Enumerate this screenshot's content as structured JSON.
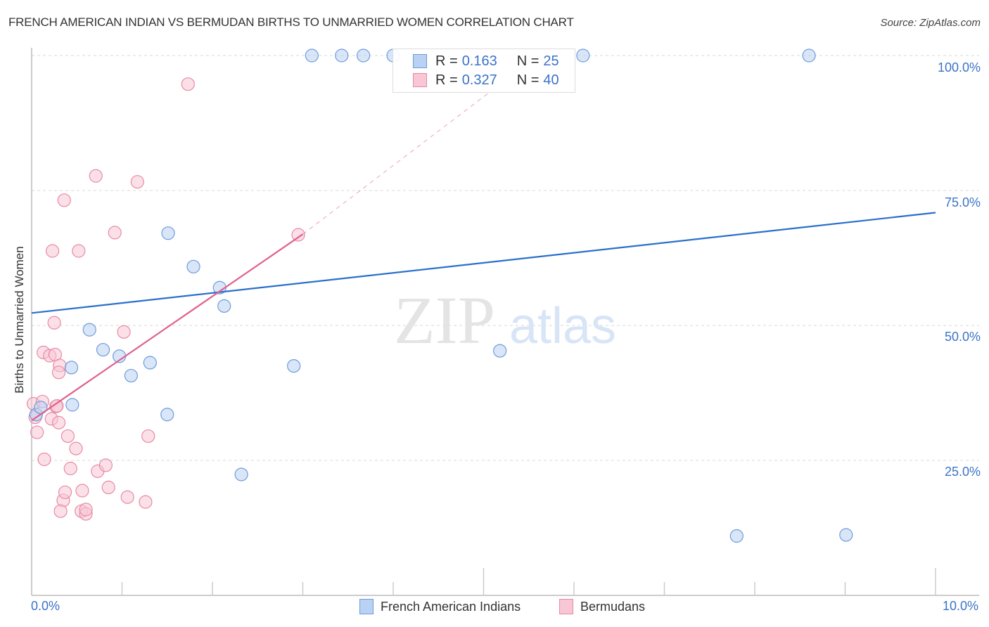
{
  "header": {
    "title": "FRENCH AMERICAN INDIAN VS BERMUDAN BIRTHS TO UNMARRIED WOMEN CORRELATION CHART",
    "source": "Source: ZipAtlas.com"
  },
  "watermark": {
    "zip": "ZIP",
    "atlas": "atlas"
  },
  "axes": {
    "y_label": "Births to Unmarried Women",
    "y_ticks": [
      "100.0%",
      "75.0%",
      "50.0%",
      "25.0%"
    ],
    "x_ticks": [
      "0.0%",
      "10.0%"
    ]
  },
  "legend": {
    "series": [
      {
        "name": "French American Indians",
        "r_label": "R =",
        "r_value": "0.163",
        "n_label": "N =",
        "n_value": "25"
      },
      {
        "name": "Bermudans",
        "r_label": "R =",
        "r_value": "0.327",
        "n_label": "N =",
        "n_value": "40"
      }
    ]
  },
  "colors": {
    "blue_fill": "#b9d1f3",
    "blue_stroke": "#6f9bdc",
    "blue_line": "#2a6fcc",
    "pink_fill": "#f8c6d5",
    "pink_stroke": "#e88aa6",
    "pink_line": "#e06090",
    "tick_text": "#3b73c8"
  },
  "chart_data": {
    "type": "scatter",
    "title": "FRENCH AMERICAN INDIAN VS BERMUDAN BIRTHS TO UNMARRIED WOMEN CORRELATION CHART",
    "xlabel": "",
    "ylabel": "Births to Unmarried Women",
    "xlim": [
      0,
      10
    ],
    "ylim": [
      0,
      100
    ],
    "x_ticks": [
      "0.0%",
      "10.0%"
    ],
    "y_ticks": [
      "25.0%",
      "50.0%",
      "75.0%",
      "100.0%"
    ],
    "grid": "horizontal dashed",
    "legend_position": "top-center (stats) and bottom-center (series)",
    "series": [
      {
        "name": "French American Indians",
        "R": 0.163,
        "N": 25,
        "points": [
          [
            0.05,
            33.5
          ],
          [
            0.1,
            34.8
          ],
          [
            0.45,
            35.3
          ],
          [
            0.44,
            42.2
          ],
          [
            0.64,
            49.2
          ],
          [
            0.79,
            45.5
          ],
          [
            0.97,
            44.3
          ],
          [
            1.1,
            40.7
          ],
          [
            1.31,
            43.1
          ],
          [
            1.5,
            33.5
          ],
          [
            1.51,
            67.1
          ],
          [
            1.79,
            60.9
          ],
          [
            2.08,
            57.0
          ],
          [
            2.13,
            53.6
          ],
          [
            2.32,
            22.4
          ],
          [
            2.9,
            42.5
          ],
          [
            3.1,
            100.0
          ],
          [
            3.43,
            100.0
          ],
          [
            3.67,
            100.0
          ],
          [
            4.0,
            100.0
          ],
          [
            5.18,
            45.3
          ],
          [
            6.1,
            100.0
          ],
          [
            7.8,
            11.0
          ],
          [
            8.6,
            100.0
          ],
          [
            9.01,
            11.2
          ]
        ],
        "trend": {
          "x": [
            0,
            10
          ],
          "y": [
            52.3,
            70.9
          ]
        }
      },
      {
        "name": "Bermudans",
        "R": 0.327,
        "N": 40,
        "points": [
          [
            0.02,
            35.5
          ],
          [
            0.04,
            33.0
          ],
          [
            0.06,
            30.2
          ],
          [
            0.12,
            35.9
          ],
          [
            0.14,
            25.2
          ],
          [
            0.22,
            32.7
          ],
          [
            0.23,
            63.8
          ],
          [
            0.25,
            50.5
          ],
          [
            0.13,
            45.0
          ],
          [
            0.2,
            44.4
          ],
          [
            0.26,
            44.6
          ],
          [
            0.27,
            35.0
          ],
          [
            0.28,
            35.1
          ],
          [
            0.31,
            42.6
          ],
          [
            0.3,
            41.3
          ],
          [
            0.3,
            32.0
          ],
          [
            0.36,
            73.2
          ],
          [
            0.35,
            17.6
          ],
          [
            0.37,
            19.1
          ],
          [
            0.4,
            29.5
          ],
          [
            0.43,
            23.5
          ],
          [
            0.49,
            27.2
          ],
          [
            0.52,
            63.8
          ],
          [
            0.55,
            15.6
          ],
          [
            0.56,
            19.4
          ],
          [
            0.6,
            15.1
          ],
          [
            0.71,
            77.7
          ],
          [
            0.73,
            23.0
          ],
          [
            0.82,
            24.1
          ],
          [
            0.85,
            20.0
          ],
          [
            0.92,
            67.2
          ],
          [
            1.02,
            48.8
          ],
          [
            1.06,
            18.2
          ],
          [
            1.17,
            76.6
          ],
          [
            1.26,
            17.3
          ],
          [
            1.29,
            29.5
          ],
          [
            1.73,
            94.7
          ],
          [
            0.32,
            15.6
          ],
          [
            0.6,
            15.9
          ],
          [
            2.95,
            66.8
          ]
        ],
        "trend": {
          "x": [
            0,
            3.0
          ],
          "y": [
            32.4,
            66.9
          ],
          "dashed_extension": {
            "x": [
              3.0,
              5.6
            ],
            "y": [
              66.9,
              100.0
            ]
          }
        }
      }
    ]
  }
}
